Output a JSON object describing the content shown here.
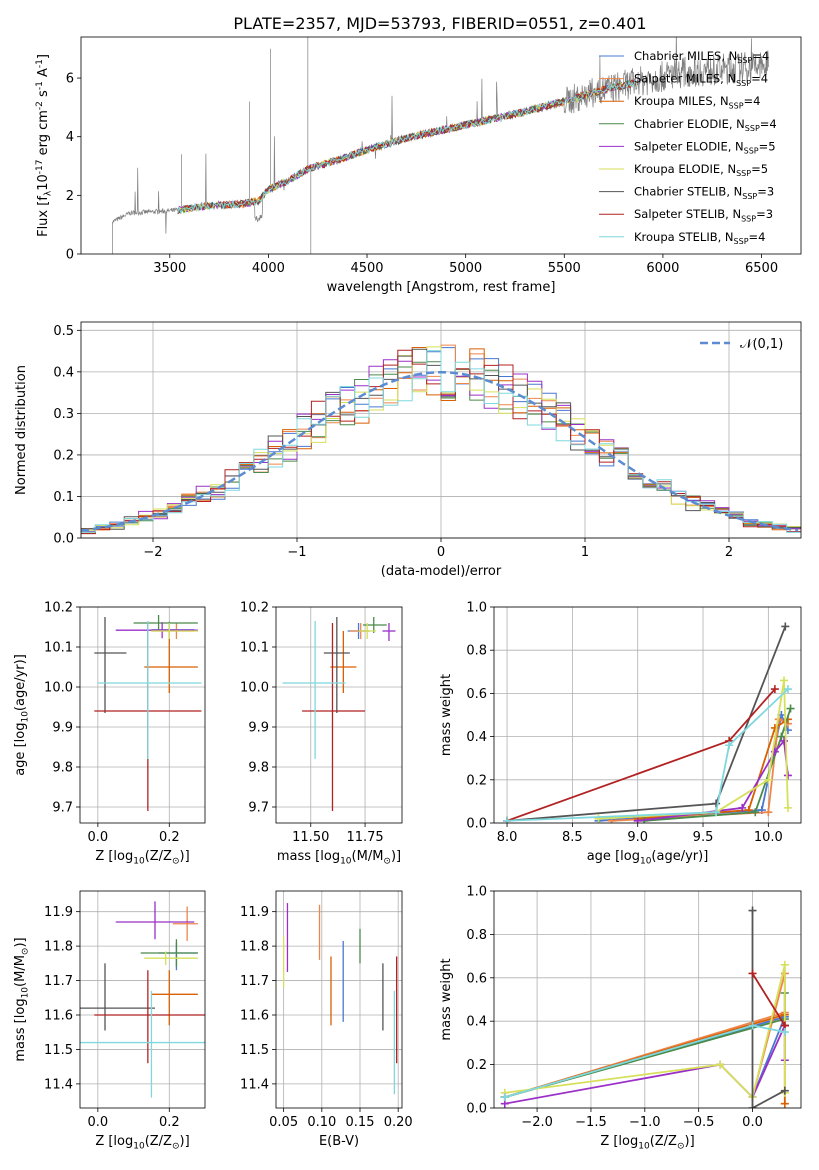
{
  "figure": {
    "title": "PLATE=2357, MJD=53793, FIBERID=0551, z=0.401"
  },
  "model_names": [
    "Chabrier MILES, N$_{SSP}$=4",
    "Salpeter MILES, N$_{SSP}$=4",
    "Kroupa MILES, N$_{SSP}$=4",
    "Chabrier ELODIE, N$_{SSP}$=4",
    "Salpeter ELODIE, N$_{SSP}$=5",
    "Kroupa ELODIE, N$_{SSP}$=5",
    "Chabrier STELIB, N$_{SSP}$=3",
    "Salpeter STELIB, N$_{SSP}$=3",
    "Kroupa STELIB, N$_{SSP}$=4"
  ],
  "model_colors": [
    "#4878d0",
    "#ee854a",
    "#d95f02",
    "#4a8a4a",
    "#9b30c8",
    "#d6e05a",
    "#555555",
    "#b22222",
    "#7fd8de"
  ],
  "chart_data": [
    {
      "id": "spectrum",
      "type": "line",
      "title": "PLATE=2357, MJD=53793, FIBERID=0551, z=0.401",
      "xlabel": "wavelength [Angstrom, rest frame]",
      "ylabel": "Flux [f$_\\lambda$10$^{-17}$ erg cm$^{-2}$ s$^{-1}$ A$^{-1}$]",
      "xlim": [
        3050,
        6700
      ],
      "ylim": [
        0,
        7.4
      ],
      "xticks": [
        3500,
        4000,
        4500,
        5000,
        5500,
        6000,
        6500
      ],
      "yticks": [
        0,
        2,
        4,
        6
      ],
      "legend": {
        "placement": "top-right",
        "entries": [
          "Chabrier MILES, N$_{SSP}$=4",
          "Salpeter MILES, N$_{SSP}$=4",
          "Kroupa MILES, N$_{SSP}$=4",
          "Chabrier ELODIE, N$_{SSP}$=4",
          "Salpeter ELODIE, N$_{SSP}$=5",
          "Kroupa ELODIE, N$_{SSP}$=5",
          "Chabrier STELIB, N$_{SSP}$=3",
          "Salpeter STELIB, N$_{SSP}$=3",
          "Kroupa STELIB, N$_{SSP}$=4"
        ]
      },
      "continuum": [
        [
          3210,
          1.1
        ],
        [
          3300,
          1.4
        ],
        [
          3450,
          1.45
        ],
        [
          3550,
          1.5
        ],
        [
          3700,
          1.65
        ],
        [
          3850,
          1.7
        ],
        [
          3950,
          1.8
        ],
        [
          4000,
          2.2
        ],
        [
          4100,
          2.5
        ],
        [
          4200,
          2.9
        ],
        [
          4350,
          3.2
        ],
        [
          4500,
          3.55
        ],
        [
          4700,
          3.95
        ],
        [
          4900,
          4.25
        ],
        [
          5100,
          4.55
        ],
        [
          5300,
          4.85
        ],
        [
          5500,
          5.2
        ],
        [
          5700,
          5.6
        ],
        [
          5900,
          5.9
        ],
        [
          6100,
          6.2
        ],
        [
          6300,
          6.3
        ],
        [
          6500,
          6.4
        ]
      ],
      "observed_extent": [
        3210,
        6540
      ],
      "model_extent": [
        3540,
        5860
      ]
    },
    {
      "id": "residuals",
      "type": "line",
      "xlabel": "(data-model)/error",
      "ylabel": "Normed distribution",
      "xlim": [
        -2.5,
        2.5
      ],
      "ylim": [
        0,
        0.52
      ],
      "xticks": [
        -2,
        -1,
        0,
        1,
        2
      ],
      "yticks": [
        0.0,
        0.1,
        0.2,
        0.3,
        0.4,
        0.5
      ],
      "grid": true,
      "legend": {
        "placement": "top-right",
        "entries": [
          "$\\mathcal{N}(0,1)$"
        ]
      },
      "reference_curve": {
        "name": "$\\mathcal{N}(0,1)$",
        "mean": 0,
        "sigma": 1,
        "color": "#5b8bd0"
      },
      "bin_width": 0.1
    },
    {
      "id": "age-vs-Z",
      "type": "scatter",
      "xlabel": "Z [log$_{10}$(Z/Z$_\\odot$)]",
      "ylabel": "age  [log$_{10}$(age/yr)]",
      "xlim": [
        -0.05,
        0.3
      ],
      "ylim": [
        9.66,
        10.2
      ],
      "xticks": [
        0.0,
        0.2
      ],
      "yticks": [
        9.7,
        9.8,
        9.9,
        10.0,
        10.1,
        10.2
      ],
      "grid": true,
      "points": [
        {
          "model": 0,
          "x": 0.2,
          "y": 10.143,
          "xerr": [
            0.05,
            0.07
          ],
          "yerr": [
            0.02,
            0.02
          ]
        },
        {
          "model": 1,
          "x": 0.22,
          "y": 10.14,
          "xerr": [
            0.07,
            0.05
          ],
          "yerr": [
            0.02,
            0.02
          ]
        },
        {
          "model": 2,
          "x": 0.2,
          "y": 10.05,
          "xerr": [
            0.07,
            0.08
          ],
          "yerr": [
            0.065,
            0.09
          ]
        },
        {
          "model": 3,
          "x": 0.17,
          "y": 10.16,
          "xerr": [
            0.07,
            0.11
          ],
          "yerr": [
            0.02,
            0.02
          ]
        },
        {
          "model": 4,
          "x": 0.18,
          "y": 10.142,
          "xerr": [
            0.13,
            0.1
          ],
          "yerr": [
            0.02,
            0.02
          ]
        },
        {
          "model": 5,
          "x": 0.2,
          "y": 10.14,
          "xerr": [
            0.05,
            0.08
          ],
          "yerr": [
            0.02,
            0.02
          ]
        },
        {
          "model": 6,
          "x": 0.02,
          "y": 10.085,
          "xerr": [
            0.03,
            0.06
          ],
          "yerr": [
            0.15,
            0.09
          ]
        },
        {
          "model": 7,
          "x": 0.14,
          "y": 9.94,
          "xerr": [
            0.15,
            0.15
          ],
          "yerr": [
            0.25,
            0.22
          ]
        },
        {
          "model": 8,
          "x": 0.14,
          "y": 10.01,
          "xerr": [
            0.14,
            0.15
          ],
          "yerr": [
            0.19,
            0.155
          ]
        }
      ]
    },
    {
      "id": "age-vs-mass",
      "type": "scatter",
      "xlabel": "mass [log$_{10}$(M/M$_\\odot$)]",
      "ylabel": "",
      "xlim": [
        11.34,
        11.92
      ],
      "ylim": [
        9.66,
        10.2
      ],
      "xticks": [
        11.5,
        11.75
      ],
      "yticks": [
        9.7,
        9.8,
        9.9,
        10.0,
        10.1,
        10.2
      ],
      "grid": true,
      "points": [
        {
          "model": 0,
          "x": 11.72,
          "y": 10.14,
          "xerr": [
            0.05,
            0.05
          ],
          "yerr": [
            0.02,
            0.02
          ]
        },
        {
          "model": 1,
          "x": 11.73,
          "y": 10.14,
          "xerr": [
            0.05,
            0.04
          ],
          "yerr": [
            0.02,
            0.02
          ]
        },
        {
          "model": 2,
          "x": 11.65,
          "y": 10.05,
          "xerr": [
            0.06,
            0.06
          ],
          "yerr": [
            0.065,
            0.09
          ]
        },
        {
          "model": 3,
          "x": 11.79,
          "y": 10.155,
          "xerr": [
            0.05,
            0.06
          ],
          "yerr": [
            0.02,
            0.02
          ]
        },
        {
          "model": 4,
          "x": 11.86,
          "y": 10.14,
          "xerr": [
            0.03,
            0.03
          ],
          "yerr": [
            0.025,
            0.02
          ]
        },
        {
          "model": 5,
          "x": 11.76,
          "y": 10.14,
          "xerr": [
            0.04,
            0.04
          ],
          "yerr": [
            0.02,
            0.02
          ]
        },
        {
          "model": 6,
          "x": 11.62,
          "y": 10.085,
          "xerr": [
            0.06,
            0.06
          ],
          "yerr": [
            0.15,
            0.09
          ]
        },
        {
          "model": 7,
          "x": 11.6,
          "y": 9.94,
          "xerr": [
            0.14,
            0.15
          ],
          "yerr": [
            0.25,
            0.22
          ]
        },
        {
          "model": 8,
          "x": 11.52,
          "y": 10.01,
          "xerr": [
            0.15,
            0.14
          ],
          "yerr": [
            0.19,
            0.155
          ]
        }
      ]
    },
    {
      "id": "weight-vs-age",
      "type": "line",
      "xlabel": "age  [log$_{10}$(age/yr)]",
      "ylabel": "mass weight",
      "xlim": [
        7.9,
        10.25
      ],
      "ylim": [
        0,
        1.0
      ],
      "xticks": [
        8.0,
        8.5,
        9.0,
        9.5,
        10.0
      ],
      "yticks": [
        0.0,
        0.2,
        0.4,
        0.6,
        0.8,
        1.0
      ],
      "grid": true,
      "series": [
        {
          "model": 0,
          "x": [
            8.7,
            9.95,
            10.1,
            10.15
          ],
          "y": [
            0.01,
            0.06,
            0.5,
            0.43
          ]
        },
        {
          "model": 1,
          "x": [
            8.8,
            10.0,
            10.08,
            10.15
          ],
          "y": [
            0.01,
            0.05,
            0.48,
            0.46
          ]
        },
        {
          "model": 2,
          "x": [
            9.0,
            9.85,
            10.05,
            10.15
          ],
          "y": [
            0.02,
            0.06,
            0.44,
            0.48
          ]
        },
        {
          "model": 3,
          "x": [
            9.05,
            9.9,
            10.1,
            10.17
          ],
          "y": [
            0.01,
            0.05,
            0.4,
            0.53
          ]
        },
        {
          "model": 4,
          "x": [
            9.0,
            9.8,
            10.05,
            10.12,
            10.15
          ],
          "y": [
            0.01,
            0.07,
            0.33,
            0.38,
            0.22
          ]
        },
        {
          "model": 5,
          "x": [
            8.7,
            9.6,
            10.0,
            10.12,
            10.15
          ],
          "y": [
            0.02,
            0.05,
            0.2,
            0.66,
            0.07
          ]
        },
        {
          "model": 6,
          "x": [
            8.0,
            9.6,
            10.13
          ],
          "y": [
            0.01,
            0.09,
            0.91
          ]
        },
        {
          "model": 7,
          "x": [
            8.0,
            9.7,
            10.05
          ],
          "y": [
            0.01,
            0.38,
            0.62
          ]
        },
        {
          "model": 8,
          "x": [
            8.0,
            9.6,
            9.7,
            10.15
          ],
          "y": [
            0.01,
            0.05,
            0.36,
            0.62
          ]
        }
      ]
    },
    {
      "id": "mass-vs-Z",
      "type": "scatter",
      "xlabel": "Z [log$_{10}$(Z/Z$_\\odot$)]",
      "ylabel": "mass [log$_{10}$(M/M$_\\odot$)]",
      "xlim": [
        -0.05,
        0.3
      ],
      "ylim": [
        11.33,
        11.96
      ],
      "xticks": [
        0.0,
        0.2
      ],
      "yticks": [
        11.4,
        11.5,
        11.6,
        11.7,
        11.8,
        11.9
      ],
      "grid": true,
      "points": [
        {
          "model": 0,
          "x": 0.22,
          "y": 11.78,
          "xerr": [
            0.05,
            0.06
          ],
          "yerr": [
            0.05,
            0.03
          ]
        },
        {
          "model": 1,
          "x": 0.25,
          "y": 11.865,
          "xerr": [
            0.04,
            0.03
          ],
          "yerr": [
            0.05,
            0.05
          ]
        },
        {
          "model": 2,
          "x": 0.2,
          "y": 11.66,
          "xerr": [
            0.05,
            0.08
          ],
          "yerr": [
            0.09,
            0.07
          ]
        },
        {
          "model": 3,
          "x": 0.22,
          "y": 11.78,
          "xerr": [
            0.1,
            0.06
          ],
          "yerr": [
            0.04,
            0.04
          ]
        },
        {
          "model": 4,
          "x": 0.16,
          "y": 11.87,
          "xerr": [
            0.11,
            0.11
          ],
          "yerr": [
            0.05,
            0.06
          ]
        },
        {
          "model": 5,
          "x": 0.19,
          "y": 11.765,
          "xerr": [
            0.06,
            0.09
          ],
          "yerr": [
            0.02,
            0.02
          ]
        },
        {
          "model": 6,
          "x": 0.02,
          "y": 11.62,
          "xerr": [
            0.07,
            0.14
          ],
          "yerr": [
            0.065,
            0.13
          ]
        },
        {
          "model": 7,
          "x": 0.14,
          "y": 11.6,
          "xerr": [
            0.15,
            0.16
          ],
          "yerr": [
            0.14,
            0.13
          ]
        },
        {
          "model": 8,
          "x": 0.15,
          "y": 11.52,
          "xerr": [
            0.2,
            0.15
          ],
          "yerr": [
            0.16,
            0.15
          ]
        }
      ]
    },
    {
      "id": "mass-vs-EBV",
      "type": "scatter",
      "xlabel": "E(B-V)",
      "ylabel": "",
      "xlim": [
        0.04,
        0.205
      ],
      "ylim": [
        11.33,
        11.96
      ],
      "xticks": [
        0.05,
        0.1,
        0.15,
        0.2
      ],
      "yticks": [
        11.4,
        11.5,
        11.6,
        11.7,
        11.8,
        11.9
      ],
      "grid": true,
      "points": [
        {
          "model": 0,
          "x": 0.128,
          "y": 11.7,
          "xerr": [
            0,
            0
          ],
          "yerr": [
            0.12,
            0.115
          ]
        },
        {
          "model": 1,
          "x": 0.097,
          "y": 11.84,
          "xerr": [
            0,
            0
          ],
          "yerr": [
            0.08,
            0.08
          ]
        },
        {
          "model": 2,
          "x": 0.112,
          "y": 11.67,
          "xerr": [
            0,
            0
          ],
          "yerr": [
            0.1,
            0.1
          ]
        },
        {
          "model": 3,
          "x": 0.15,
          "y": 11.8,
          "xerr": [
            0,
            0
          ],
          "yerr": [
            0.05,
            0.05
          ]
        },
        {
          "model": 4,
          "x": 0.055,
          "y": 11.825,
          "xerr": [
            0,
            0
          ],
          "yerr": [
            0.1,
            0.1
          ]
        },
        {
          "model": 5,
          "x": 0.05,
          "y": 11.76,
          "xerr": [
            0,
            0
          ],
          "yerr": [
            0.08,
            0.07
          ]
        },
        {
          "model": 6,
          "x": 0.18,
          "y": 11.655,
          "xerr": [
            0,
            0
          ],
          "yerr": [
            0.1,
            0.095
          ]
        },
        {
          "model": 7,
          "x": 0.198,
          "y": 11.62,
          "xerr": [
            0,
            0
          ],
          "yerr": [
            0.16,
            0.15
          ]
        },
        {
          "model": 8,
          "x": 0.195,
          "y": 11.52,
          "xerr": [
            0,
            0
          ],
          "yerr": [
            0.15,
            0.15
          ]
        }
      ]
    },
    {
      "id": "weight-vs-Z",
      "type": "line",
      "xlabel": "Z [log$_{10}$(Z/Z$_\\odot$)]",
      "ylabel": "mass weight",
      "xlim": [
        -2.4,
        0.45
      ],
      "ylim": [
        0,
        1.0
      ],
      "xticks": [
        -2.0,
        -1.5,
        -1.0,
        -0.5,
        0.0
      ],
      "yticks": [
        0.0,
        0.2,
        0.4,
        0.6,
        0.8,
        1.0
      ],
      "grid": true,
      "series": [
        {
          "model": 0,
          "x": [
            -2.3,
            0.3,
            0.0
          ],
          "y": [
            0.05,
            0.42,
            0.05
          ]
        },
        {
          "model": 1,
          "x": [
            -2.3,
            0.3,
            0.3,
            0.0
          ],
          "y": [
            0.05,
            0.44,
            0.62,
            0.05
          ]
        },
        {
          "model": 2,
          "x": [
            -2.3,
            0.3,
            0.3
          ],
          "y": [
            0.05,
            0.43,
            0.02
          ]
        },
        {
          "model": 3,
          "x": [
            -2.3,
            0.3,
            0.3
          ],
          "y": [
            0.05,
            0.41,
            0.53
          ]
        },
        {
          "model": 4,
          "x": [
            -2.3,
            -0.3,
            0.0,
            0.3,
            0.3
          ],
          "y": [
            0.02,
            0.2,
            0.05,
            0.38,
            0.22
          ]
        },
        {
          "model": 5,
          "x": [
            -2.3,
            -0.3,
            0.0,
            0.3,
            0.3
          ],
          "y": [
            0.07,
            0.2,
            0.05,
            0.66,
            0.07
          ]
        },
        {
          "model": 6,
          "x": [
            0.0,
            0.0,
            0.3
          ],
          "y": [
            0.91,
            0.0,
            0.08
          ]
        },
        {
          "model": 7,
          "x": [
            0.0,
            0.3,
            0.3
          ],
          "y": [
            0.62,
            0.38,
            0.38
          ]
        },
        {
          "model": 8,
          "x": [
            -2.3,
            0.0,
            0.3
          ],
          "y": [
            0.05,
            0.38,
            0.35
          ]
        }
      ]
    }
  ]
}
